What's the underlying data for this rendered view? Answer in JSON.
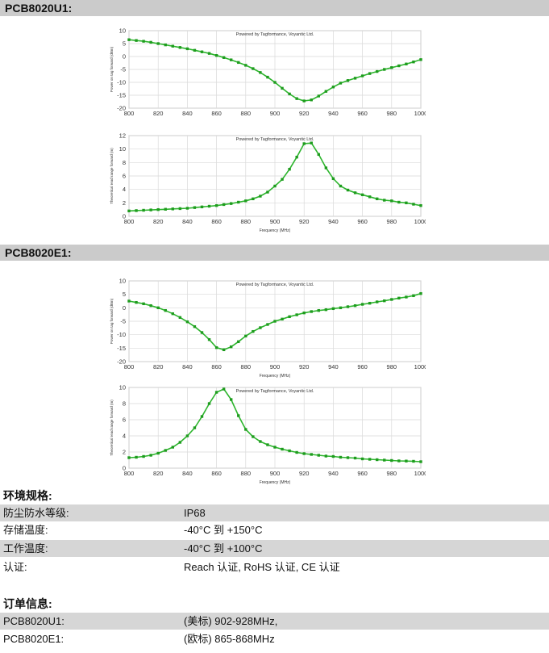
{
  "sections": {
    "u1_title": "PCB8020U1:",
    "e1_title": "PCB8020E1:"
  },
  "colors": {
    "series": "#2db52d",
    "marker": "#1e9c1e",
    "grid": "#d9d9d9",
    "bar": "#cbcbcb",
    "row_shade": "#d6d6d6"
  },
  "chart_data": [
    {
      "id": "u1_power",
      "type": "line",
      "title": "Powered by Tagformance, Voyantic Ltd.",
      "xlabel": "",
      "ylabel": "Power on tag forward (dBm)",
      "xlim": [
        800,
        1000
      ],
      "ylim": [
        -20,
        10
      ],
      "xticks": [
        800,
        820,
        840,
        860,
        880,
        900,
        920,
        940,
        960,
        980,
        1000
      ],
      "yticks": [
        -20,
        -15,
        -10,
        -5,
        0,
        5,
        10
      ],
      "grid": true,
      "x": [
        800,
        805,
        810,
        815,
        820,
        825,
        830,
        835,
        840,
        845,
        850,
        855,
        860,
        865,
        870,
        875,
        880,
        885,
        890,
        895,
        900,
        905,
        910,
        915,
        920,
        925,
        930,
        935,
        940,
        945,
        950,
        955,
        960,
        965,
        970,
        975,
        980,
        985,
        990,
        995,
        1000
      ],
      "y": [
        6.5,
        6.2,
        5.9,
        5.5,
        5.0,
        4.5,
        4.0,
        3.5,
        3.0,
        2.4,
        1.8,
        1.2,
        0.4,
        -0.4,
        -1.3,
        -2.3,
        -3.4,
        -4.7,
        -6.2,
        -8.0,
        -10.0,
        -12.3,
        -14.5,
        -16.3,
        -17.2,
        -16.8,
        -15.3,
        -13.5,
        -11.8,
        -10.3,
        -9.3,
        -8.4,
        -7.5,
        -6.6,
        -5.8,
        -5.0,
        -4.3,
        -3.6,
        -2.9,
        -2.1,
        -1.2
      ]
    },
    {
      "id": "u1_range",
      "type": "line",
      "title": "Powered by Tagformance, Voyantic Ltd.",
      "xlabel": "Frequency (MHz)",
      "ylabel": "Theoretical read range forward (m)",
      "xlim": [
        800,
        1000
      ],
      "ylim": [
        0,
        12
      ],
      "xticks": [
        800,
        820,
        840,
        860,
        880,
        900,
        920,
        940,
        960,
        980,
        1000
      ],
      "yticks": [
        0,
        2,
        4,
        6,
        8,
        10,
        12
      ],
      "grid": true,
      "x": [
        800,
        805,
        810,
        815,
        820,
        825,
        830,
        835,
        840,
        845,
        850,
        855,
        860,
        865,
        870,
        875,
        880,
        885,
        890,
        895,
        900,
        905,
        910,
        915,
        920,
        925,
        930,
        935,
        940,
        945,
        950,
        955,
        960,
        965,
        970,
        975,
        980,
        985,
        990,
        995,
        1000
      ],
      "y": [
        0.8,
        0.85,
        0.9,
        0.95,
        1.0,
        1.05,
        1.1,
        1.15,
        1.2,
        1.3,
        1.4,
        1.5,
        1.6,
        1.75,
        1.9,
        2.1,
        2.3,
        2.6,
        3.0,
        3.6,
        4.5,
        5.5,
        7.0,
        8.8,
        10.8,
        10.9,
        9.2,
        7.2,
        5.6,
        4.5,
        3.9,
        3.5,
        3.2,
        2.9,
        2.6,
        2.4,
        2.3,
        2.1,
        2.0,
        1.8,
        1.6
      ]
    },
    {
      "id": "e1_power",
      "type": "line",
      "title": "Powered by Tagformance, Voyantic Ltd.",
      "xlabel": "Frequency (MHz)",
      "ylabel": "Power on tag forward (dBm)",
      "xlim": [
        800,
        1000
      ],
      "ylim": [
        -20,
        10
      ],
      "xticks": [
        800,
        820,
        840,
        860,
        880,
        900,
        920,
        940,
        960,
        980,
        1000
      ],
      "yticks": [
        -20,
        -15,
        -10,
        -5,
        0,
        5,
        10
      ],
      "grid": true,
      "x": [
        800,
        805,
        810,
        815,
        820,
        825,
        830,
        835,
        840,
        845,
        850,
        855,
        860,
        865,
        870,
        875,
        880,
        885,
        890,
        895,
        900,
        905,
        910,
        915,
        920,
        925,
        930,
        935,
        940,
        945,
        950,
        955,
        960,
        965,
        970,
        975,
        980,
        985,
        990,
        995,
        1000
      ],
      "y": [
        2.5,
        2.0,
        1.5,
        0.8,
        0,
        -1.0,
        -2.2,
        -3.6,
        -5.2,
        -7.0,
        -9.2,
        -11.8,
        -14.8,
        -15.6,
        -14.5,
        -12.6,
        -10.5,
        -8.8,
        -7.4,
        -6.2,
        -5.0,
        -4.2,
        -3.3,
        -2.6,
        -1.9,
        -1.4,
        -1.0,
        -0.7,
        -0.3,
        0,
        0.4,
        0.8,
        1.3,
        1.7,
        2.2,
        2.6,
        3.1,
        3.6,
        4.0,
        4.5,
        5.3
      ]
    },
    {
      "id": "e1_range",
      "type": "line",
      "title": "Powered by Tagformance, Voyantic Ltd.",
      "xlabel": "Frequency (MHz)",
      "ylabel": "Theoretical read range forward (m)",
      "xlim": [
        800,
        1000
      ],
      "ylim": [
        0,
        10
      ],
      "xticks": [
        800,
        820,
        840,
        860,
        880,
        900,
        920,
        940,
        960,
        980,
        1000
      ],
      "yticks": [
        0,
        2,
        4,
        6,
        8,
        10
      ],
      "grid": true,
      "x": [
        800,
        805,
        810,
        815,
        820,
        825,
        830,
        835,
        840,
        845,
        850,
        855,
        860,
        865,
        870,
        875,
        880,
        885,
        890,
        895,
        900,
        905,
        910,
        915,
        920,
        925,
        930,
        935,
        940,
        945,
        950,
        955,
        960,
        965,
        970,
        975,
        980,
        985,
        990,
        995,
        1000
      ],
      "y": [
        1.3,
        1.35,
        1.45,
        1.6,
        1.85,
        2.2,
        2.6,
        3.2,
        4.0,
        5.0,
        6.4,
        8.0,
        9.4,
        9.8,
        8.5,
        6.5,
        4.8,
        3.9,
        3.3,
        2.9,
        2.6,
        2.35,
        2.15,
        1.95,
        1.8,
        1.7,
        1.6,
        1.5,
        1.45,
        1.35,
        1.3,
        1.25,
        1.15,
        1.1,
        1.05,
        1.0,
        0.95,
        0.9,
        0.88,
        0.85,
        0.8
      ]
    }
  ],
  "specs": {
    "title": "环境规格:",
    "rows": [
      {
        "k": "防尘防水等级:",
        "v": "IP68"
      },
      {
        "k": "存储温度:",
        "v": "-40°C 到 +150°C"
      },
      {
        "k": "工作温度:",
        "v": "-40°C 到 +100°C"
      },
      {
        "k": "认证:",
        "v": "Reach 认证, RoHS 认证, CE 认证"
      }
    ]
  },
  "order": {
    "title": "订单信息:",
    "rows": [
      {
        "k": "PCB8020U1:",
        "v": "(美标) 902-928MHz,"
      },
      {
        "k": "PCB8020E1:",
        "v": "(欧标) 865-868MHz"
      }
    ]
  }
}
